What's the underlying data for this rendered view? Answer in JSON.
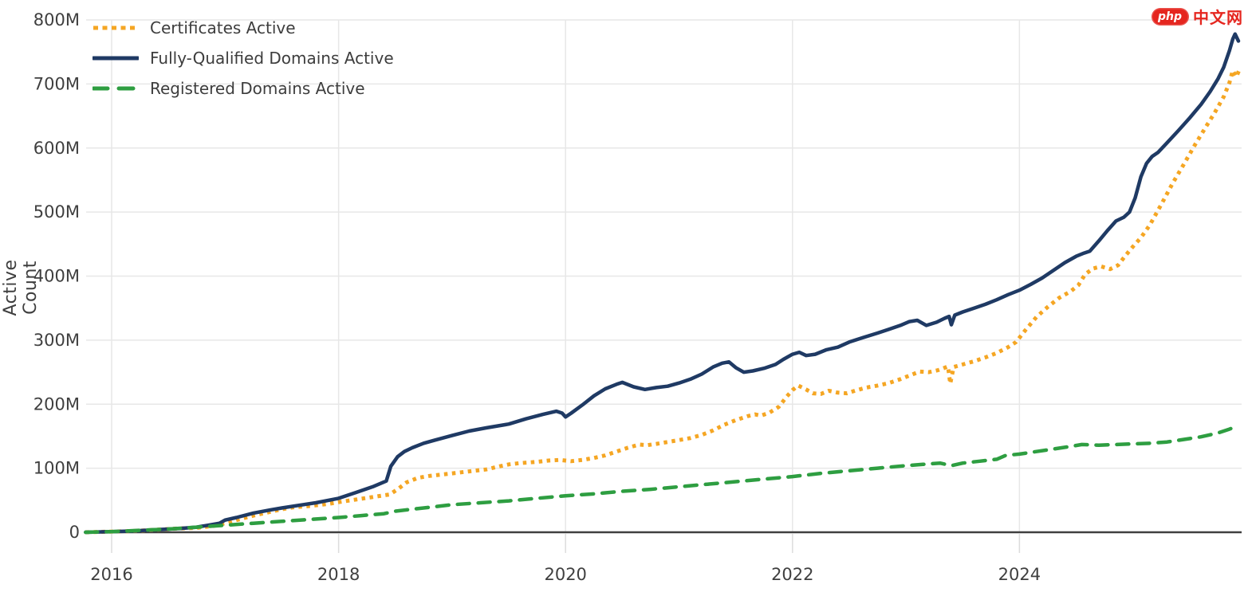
{
  "watermark": {
    "badge_text": "php",
    "site_text": "中文网",
    "color": "#e5261f"
  },
  "y_axis": {
    "title": "Active Count",
    "ticks": [
      {
        "value": 0,
        "label": "0"
      },
      {
        "value": 100,
        "label": "100M"
      },
      {
        "value": 200,
        "label": "200M"
      },
      {
        "value": 300,
        "label": "300M"
      },
      {
        "value": 400,
        "label": "400M"
      },
      {
        "value": 500,
        "label": "500M"
      },
      {
        "value": 600,
        "label": "600M"
      },
      {
        "value": 700,
        "label": "700M"
      },
      {
        "value": 800,
        "label": "800M"
      }
    ]
  },
  "x_axis": {
    "ticks": [
      {
        "year": 2016,
        "label": "2016"
      },
      {
        "year": 2018,
        "label": "2018"
      },
      {
        "year": 2020,
        "label": "2020"
      },
      {
        "year": 2022,
        "label": "2022"
      },
      {
        "year": 2024,
        "label": "2024"
      }
    ]
  },
  "legend": {
    "items": [
      {
        "id": "certificates",
        "label": "Certificates Active",
        "color": "#f5a623",
        "style": "dotted"
      },
      {
        "id": "fqdn",
        "label": "Fully-Qualified Domains Active",
        "color": "#1f3a64",
        "style": "solid"
      },
      {
        "id": "registered",
        "label": "Registered Domains Active",
        "color": "#2e9e41",
        "style": "dashed"
      }
    ]
  },
  "chart_data": {
    "type": "line",
    "title": "",
    "xlabel": "",
    "ylabel": "Active Count",
    "y_unit": "millions",
    "xlim": [
      2015.75,
      2025.97
    ],
    "ylim": [
      0,
      800
    ],
    "grid": true,
    "legend_position": "top-left",
    "series": [
      {
        "name": "Certificates Active",
        "color": "#f5a623",
        "line_style": "dotted",
        "points": [
          [
            2015.77,
            0
          ],
          [
            2016.0,
            1
          ],
          [
            2016.2,
            2
          ],
          [
            2016.4,
            4
          ],
          [
            2016.6,
            6
          ],
          [
            2016.75,
            7
          ],
          [
            2016.9,
            10
          ],
          [
            2017.0,
            14
          ],
          [
            2017.1,
            19
          ],
          [
            2017.25,
            26
          ],
          [
            2017.4,
            32
          ],
          [
            2017.5,
            36
          ],
          [
            2017.6,
            39
          ],
          [
            2017.75,
            41
          ],
          [
            2017.9,
            44
          ],
          [
            2018.0,
            47
          ],
          [
            2018.15,
            51
          ],
          [
            2018.3,
            55
          ],
          [
            2018.45,
            59
          ],
          [
            2018.52,
            67
          ],
          [
            2018.6,
            78
          ],
          [
            2018.7,
            85
          ],
          [
            2018.8,
            88
          ],
          [
            2018.9,
            90
          ],
          [
            2019.0,
            92
          ],
          [
            2019.15,
            95
          ],
          [
            2019.3,
            98
          ],
          [
            2019.42,
            103
          ],
          [
            2019.5,
            106
          ],
          [
            2019.6,
            108
          ],
          [
            2019.75,
            110
          ],
          [
            2019.85,
            112
          ],
          [
            2019.95,
            113
          ],
          [
            2020.05,
            111
          ],
          [
            2020.15,
            113
          ],
          [
            2020.25,
            116
          ],
          [
            2020.35,
            120
          ],
          [
            2020.45,
            126
          ],
          [
            2020.55,
            132
          ],
          [
            2020.65,
            137
          ],
          [
            2020.72,
            136
          ],
          [
            2020.8,
            138
          ],
          [
            2020.9,
            141
          ],
          [
            2021.0,
            144
          ],
          [
            2021.1,
            147
          ],
          [
            2021.2,
            152
          ],
          [
            2021.3,
            159
          ],
          [
            2021.4,
            168
          ],
          [
            2021.5,
            175
          ],
          [
            2021.6,
            181
          ],
          [
            2021.67,
            184
          ],
          [
            2021.72,
            182
          ],
          [
            2021.8,
            187
          ],
          [
            2021.88,
            196
          ],
          [
            2021.95,
            212
          ],
          [
            2022.0,
            222
          ],
          [
            2022.05,
            229
          ],
          [
            2022.12,
            223
          ],
          [
            2022.18,
            217
          ],
          [
            2022.25,
            216
          ],
          [
            2022.32,
            221
          ],
          [
            2022.4,
            218
          ],
          [
            2022.48,
            217
          ],
          [
            2022.55,
            221
          ],
          [
            2022.65,
            226
          ],
          [
            2022.75,
            229
          ],
          [
            2022.85,
            233
          ],
          [
            2022.95,
            239
          ],
          [
            2023.05,
            246
          ],
          [
            2023.12,
            251
          ],
          [
            2023.2,
            250
          ],
          [
            2023.28,
            253
          ],
          [
            2023.33,
            256
          ],
          [
            2023.37,
            259
          ],
          [
            2023.39,
            232
          ],
          [
            2023.42,
            258
          ],
          [
            2023.5,
            262
          ],
          [
            2023.6,
            267
          ],
          [
            2023.7,
            273
          ],
          [
            2023.8,
            280
          ],
          [
            2023.9,
            289
          ],
          [
            2023.97,
            297
          ],
          [
            2024.05,
            315
          ],
          [
            2024.15,
            336
          ],
          [
            2024.25,
            352
          ],
          [
            2024.35,
            366
          ],
          [
            2024.45,
            376
          ],
          [
            2024.52,
            386
          ],
          [
            2024.58,
            403
          ],
          [
            2024.65,
            412
          ],
          [
            2024.72,
            415
          ],
          [
            2024.8,
            411
          ],
          [
            2024.87,
            417
          ],
          [
            2024.93,
            431
          ],
          [
            2025.0,
            446
          ],
          [
            2025.07,
            460
          ],
          [
            2025.15,
            480
          ],
          [
            2025.25,
            512
          ],
          [
            2025.35,
            545
          ],
          [
            2025.45,
            575
          ],
          [
            2025.55,
            606
          ],
          [
            2025.65,
            635
          ],
          [
            2025.72,
            655
          ],
          [
            2025.8,
            680
          ],
          [
            2025.85,
            702
          ],
          [
            2025.88,
            721
          ],
          [
            2025.91,
            711
          ],
          [
            2025.94,
            723
          ]
        ]
      },
      {
        "name": "Fully-Qualified Domains Active",
        "color": "#1f3a64",
        "line_style": "solid",
        "points": [
          [
            2015.77,
            0
          ],
          [
            2016.0,
            1
          ],
          [
            2016.2,
            2
          ],
          [
            2016.4,
            4
          ],
          [
            2016.6,
            6
          ],
          [
            2016.75,
            8
          ],
          [
            2016.85,
            11
          ],
          [
            2016.95,
            14
          ],
          [
            2017.0,
            19
          ],
          [
            2017.1,
            23
          ],
          [
            2017.25,
            30
          ],
          [
            2017.4,
            35
          ],
          [
            2017.5,
            38
          ],
          [
            2017.65,
            42
          ],
          [
            2017.8,
            46
          ],
          [
            2018.0,
            53
          ],
          [
            2018.15,
            62
          ],
          [
            2018.3,
            71
          ],
          [
            2018.42,
            80
          ],
          [
            2018.46,
            103
          ],
          [
            2018.52,
            118
          ],
          [
            2018.58,
            126
          ],
          [
            2018.65,
            132
          ],
          [
            2018.75,
            139
          ],
          [
            2018.85,
            144
          ],
          [
            2019.0,
            151
          ],
          [
            2019.15,
            158
          ],
          [
            2019.3,
            163
          ],
          [
            2019.5,
            169
          ],
          [
            2019.65,
            177
          ],
          [
            2019.8,
            184
          ],
          [
            2019.92,
            189
          ],
          [
            2019.97,
            186
          ],
          [
            2020.0,
            180
          ],
          [
            2020.05,
            186
          ],
          [
            2020.15,
            199
          ],
          [
            2020.25,
            213
          ],
          [
            2020.35,
            224
          ],
          [
            2020.45,
            231
          ],
          [
            2020.5,
            234
          ],
          [
            2020.6,
            227
          ],
          [
            2020.7,
            223
          ],
          [
            2020.8,
            226
          ],
          [
            2020.9,
            228
          ],
          [
            2021.0,
            233
          ],
          [
            2021.1,
            239
          ],
          [
            2021.2,
            247
          ],
          [
            2021.3,
            258
          ],
          [
            2021.38,
            264
          ],
          [
            2021.44,
            266
          ],
          [
            2021.5,
            257
          ],
          [
            2021.57,
            250
          ],
          [
            2021.65,
            252
          ],
          [
            2021.75,
            256
          ],
          [
            2021.85,
            262
          ],
          [
            2021.92,
            270
          ],
          [
            2022.0,
            278
          ],
          [
            2022.06,
            281
          ],
          [
            2022.12,
            276
          ],
          [
            2022.2,
            278
          ],
          [
            2022.3,
            285
          ],
          [
            2022.4,
            289
          ],
          [
            2022.5,
            297
          ],
          [
            2022.62,
            304
          ],
          [
            2022.75,
            311
          ],
          [
            2022.85,
            317
          ],
          [
            2022.95,
            323
          ],
          [
            2023.03,
            329
          ],
          [
            2023.1,
            331
          ],
          [
            2023.18,
            323
          ],
          [
            2023.27,
            328
          ],
          [
            2023.34,
            334
          ],
          [
            2023.38,
            337
          ],
          [
            2023.4,
            324
          ],
          [
            2023.43,
            339
          ],
          [
            2023.5,
            344
          ],
          [
            2023.6,
            350
          ],
          [
            2023.7,
            356
          ],
          [
            2023.8,
            363
          ],
          [
            2023.9,
            371
          ],
          [
            2024.0,
            378
          ],
          [
            2024.1,
            387
          ],
          [
            2024.2,
            397
          ],
          [
            2024.3,
            409
          ],
          [
            2024.4,
            421
          ],
          [
            2024.5,
            431
          ],
          [
            2024.57,
            436
          ],
          [
            2024.62,
            439
          ],
          [
            2024.7,
            455
          ],
          [
            2024.78,
            472
          ],
          [
            2024.85,
            486
          ],
          [
            2024.92,
            492
          ],
          [
            2024.97,
            500
          ],
          [
            2025.02,
            522
          ],
          [
            2025.07,
            555
          ],
          [
            2025.12,
            576
          ],
          [
            2025.17,
            587
          ],
          [
            2025.22,
            593
          ],
          [
            2025.3,
            608
          ],
          [
            2025.4,
            627
          ],
          [
            2025.5,
            647
          ],
          [
            2025.6,
            668
          ],
          [
            2025.68,
            688
          ],
          [
            2025.75,
            708
          ],
          [
            2025.8,
            726
          ],
          [
            2025.85,
            752
          ],
          [
            2025.88,
            770
          ],
          [
            2025.9,
            778
          ],
          [
            2025.93,
            767
          ]
        ]
      },
      {
        "name": "Registered Domains Active",
        "color": "#2e9e41",
        "line_style": "dashed",
        "points": [
          [
            2015.77,
            0
          ],
          [
            2016.0,
            1
          ],
          [
            2016.25,
            3
          ],
          [
            2016.5,
            5
          ],
          [
            2016.75,
            8
          ],
          [
            2017.0,
            11
          ],
          [
            2017.25,
            14
          ],
          [
            2017.5,
            17
          ],
          [
            2017.75,
            20
          ],
          [
            2018.0,
            23
          ],
          [
            2018.2,
            26
          ],
          [
            2018.4,
            29
          ],
          [
            2018.5,
            33
          ],
          [
            2018.65,
            36
          ],
          [
            2018.8,
            39
          ],
          [
            2019.0,
            43
          ],
          [
            2019.25,
            46
          ],
          [
            2019.5,
            49
          ],
          [
            2019.75,
            53
          ],
          [
            2020.0,
            57
          ],
          [
            2020.25,
            60
          ],
          [
            2020.5,
            64
          ],
          [
            2020.75,
            67
          ],
          [
            2021.0,
            71
          ],
          [
            2021.25,
            75
          ],
          [
            2021.5,
            79
          ],
          [
            2021.75,
            83
          ],
          [
            2022.0,
            87
          ],
          [
            2022.25,
            92
          ],
          [
            2022.5,
            96
          ],
          [
            2022.75,
            100
          ],
          [
            2023.0,
            104
          ],
          [
            2023.15,
            106
          ],
          [
            2023.3,
            108
          ],
          [
            2023.4,
            104
          ],
          [
            2023.5,
            108
          ],
          [
            2023.65,
            111
          ],
          [
            2023.8,
            114
          ],
          [
            2023.88,
            120
          ],
          [
            2024.0,
            122
          ],
          [
            2024.15,
            126
          ],
          [
            2024.3,
            130
          ],
          [
            2024.45,
            134
          ],
          [
            2024.55,
            137
          ],
          [
            2024.7,
            136
          ],
          [
            2024.85,
            137
          ],
          [
            2025.0,
            138
          ],
          [
            2025.15,
            139
          ],
          [
            2025.3,
            141
          ],
          [
            2025.45,
            145
          ],
          [
            2025.6,
            149
          ],
          [
            2025.75,
            155
          ],
          [
            2025.85,
            161
          ],
          [
            2025.92,
            166
          ]
        ]
      }
    ]
  }
}
